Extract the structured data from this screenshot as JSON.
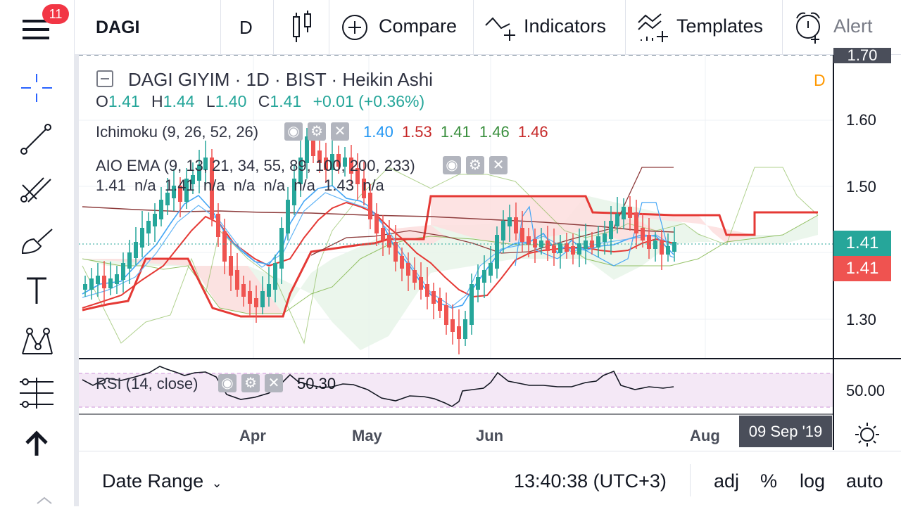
{
  "topbar": {
    "notification_count": "11",
    "symbol": "DAGI",
    "interval": "D",
    "compare": "Compare",
    "indicators": "Indicators",
    "templates": "Templates",
    "alert": "Alert"
  },
  "legend": {
    "title": "DAGI GIYIM · 1D · BIST · Heikin Ashi",
    "o_label": "O",
    "o_val": "1.41",
    "h_label": "H",
    "h_val": "1.44",
    "l_label": "L",
    "l_val": "1.40",
    "c_label": "C",
    "c_val": "1.41",
    "change": "+0.01 (+0.36%)",
    "d_marker": "D",
    "ichimoku_name": "Ichimoku (9, 26, 52, 26)",
    "ichimoku_values": [
      "1.40",
      "1.53",
      "1.41",
      "1.46",
      "1.46"
    ],
    "aio_name": "AIO EMA (9, 13, 21, 34, 55, 89, 100, 200, 233)",
    "aio_values": "1.41  n/a  1.41  n/a  n/a  n/a  n/a  1.43  n/a",
    "rsi_name": "RSI (14, close)",
    "rsi_value": "50.30"
  },
  "price_axis": {
    "ticks": [
      "1.70",
      "1.60",
      "1.50",
      "1.30"
    ],
    "last_price_green": "1.41",
    "last_price_red": "1.41",
    "rsi_tick": "50.00"
  },
  "time_axis": {
    "ticks": [
      "Apr",
      "May",
      "Jun",
      "Aug"
    ],
    "crosshair_date": "09 Sep '19"
  },
  "bottombar": {
    "date_range": "Date Range",
    "time": "13:40:38 (UTC+3)",
    "adj": "adj",
    "percent": "%",
    "log": "log",
    "auto": "auto"
  },
  "colors": {
    "up": "#26a69a",
    "down": "#ef5350",
    "kijun": "#e53935",
    "ema_blue": "#42a5f5",
    "rsi_band": "#f3e5f5"
  }
}
